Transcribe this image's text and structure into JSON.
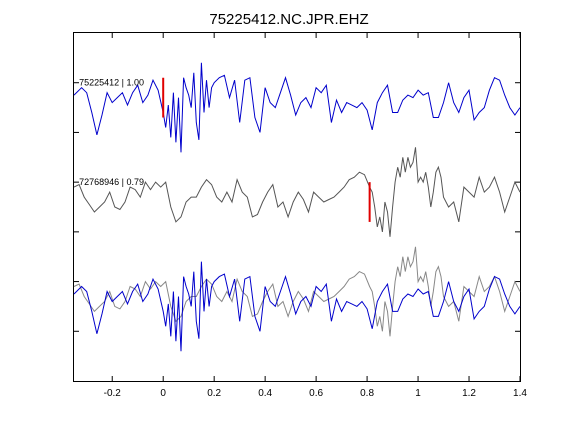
{
  "chart_data": {
    "type": "line",
    "title": "75225412.NC.JPR.EHZ",
    "xlabel": "",
    "ylabel": "",
    "xlim": [
      -0.35,
      1.4
    ],
    "xticks": [
      -0.2,
      0,
      0.2,
      0.4,
      0.6,
      0.8,
      1,
      1.2,
      1.4
    ],
    "xtick_labels": [
      "-0.2",
      "0",
      "0.2",
      "0.4",
      "0.6",
      "0.8",
      "1",
      "1.2",
      "1.4"
    ],
    "ylim": [
      0,
      7
    ],
    "grid": false,
    "colors": {
      "blue": "#0000cc",
      "gray": "#555555",
      "gray_light": "#888888",
      "pick": "#e00000"
    },
    "annotations": [
      {
        "text": "75225412 | 1.00",
        "x": -0.33,
        "y": 6.0
      },
      {
        "text": "72768946 | 0.79",
        "x": -0.33,
        "y": 4.0
      }
    ],
    "picks": [
      {
        "x": 0.0,
        "y_range": [
          5.3,
          6.1
        ]
      },
      {
        "x": 0.81,
        "y_range": [
          3.2,
          4.0
        ]
      }
    ],
    "series": [
      {
        "trace": 1,
        "color_key": "blue",
        "y_offset": 5.5,
        "x": [
          -0.35,
          -0.32,
          -0.3,
          -0.28,
          -0.26,
          -0.24,
          -0.22,
          -0.2,
          -0.18,
          -0.16,
          -0.14,
          -0.12,
          -0.1,
          -0.08,
          -0.06,
          -0.04,
          -0.02,
          0.0,
          0.01,
          0.02,
          0.03,
          0.04,
          0.05,
          0.06,
          0.07,
          0.08,
          0.09,
          0.1,
          0.11,
          0.12,
          0.13,
          0.14,
          0.15,
          0.16,
          0.17,
          0.18,
          0.19,
          0.2,
          0.22,
          0.24,
          0.26,
          0.28,
          0.3,
          0.32,
          0.34,
          0.36,
          0.38,
          0.4,
          0.42,
          0.44,
          0.46,
          0.48,
          0.5,
          0.52,
          0.54,
          0.56,
          0.58,
          0.6,
          0.62,
          0.64,
          0.66,
          0.68,
          0.7,
          0.72,
          0.74,
          0.76,
          0.78,
          0.8,
          0.82,
          0.84,
          0.86,
          0.88,
          0.9,
          0.92,
          0.94,
          0.96,
          0.98,
          1.0,
          1.02,
          1.04,
          1.06,
          1.08,
          1.1,
          1.12,
          1.14,
          1.16,
          1.18,
          1.2,
          1.22,
          1.24,
          1.26,
          1.28,
          1.3,
          1.32,
          1.34,
          1.36,
          1.38,
          1.4
        ],
        "y": [
          0.25,
          0.4,
          0.3,
          -0.1,
          -0.55,
          -0.15,
          0.3,
          0.1,
          0.2,
          0.3,
          0.05,
          0.3,
          0.45,
          0.1,
          0.25,
          0.55,
          0.35,
          -0.1,
          -0.4,
          0.05,
          -0.6,
          0.3,
          -0.7,
          0.2,
          -0.9,
          0.6,
          0.4,
          0.25,
          0.0,
          0.7,
          -0.3,
          -0.65,
          0.9,
          -0.1,
          0.55,
          0.0,
          0.4,
          0.5,
          0.6,
          0.65,
          0.2,
          0.55,
          -0.3,
          0.55,
          0.6,
          -0.2,
          -0.5,
          0.4,
          0.1,
          0.0,
          0.3,
          0.6,
          0.25,
          -0.15,
          0.1,
          0.2,
          0.0,
          0.4,
          0.3,
          0.45,
          -0.3,
          0.15,
          -0.1,
          0.1,
          0.05,
          0.0,
          0.1,
          -0.05,
          -0.45,
          0.1,
          0.3,
          0.45,
          -0.1,
          -0.1,
          0.15,
          0.25,
          0.2,
          0.35,
          0.25,
          0.3,
          -0.2,
          -0.2,
          0.1,
          0.5,
          0.1,
          -0.1,
          0.2,
          0.35,
          -0.25,
          -0.1,
          0.0,
          0.35,
          0.6,
          0.55,
          0.25,
          0.0,
          -0.15,
          0.0
        ]
      },
      {
        "trace": 2,
        "color_key": "gray",
        "y_offset": 3.5,
        "x": [
          -0.35,
          -0.33,
          -0.31,
          -0.29,
          -0.27,
          -0.25,
          -0.23,
          -0.21,
          -0.19,
          -0.17,
          -0.15,
          -0.13,
          -0.11,
          -0.09,
          -0.07,
          -0.05,
          -0.03,
          -0.01,
          0.01,
          0.03,
          0.05,
          0.07,
          0.09,
          0.11,
          0.13,
          0.15,
          0.17,
          0.19,
          0.21,
          0.23,
          0.25,
          0.27,
          0.29,
          0.31,
          0.33,
          0.35,
          0.37,
          0.39,
          0.41,
          0.43,
          0.45,
          0.47,
          0.49,
          0.51,
          0.53,
          0.55,
          0.57,
          0.59,
          0.61,
          0.63,
          0.65,
          0.67,
          0.69,
          0.71,
          0.73,
          0.75,
          0.77,
          0.79,
          0.81,
          0.82,
          0.83,
          0.84,
          0.85,
          0.86,
          0.87,
          0.88,
          0.89,
          0.9,
          0.91,
          0.92,
          0.93,
          0.94,
          0.95,
          0.96,
          0.97,
          0.98,
          0.99,
          1.0,
          1.01,
          1.02,
          1.03,
          1.04,
          1.05,
          1.06,
          1.07,
          1.08,
          1.09,
          1.1,
          1.12,
          1.14,
          1.16,
          1.18,
          1.2,
          1.22,
          1.24,
          1.26,
          1.28,
          1.3,
          1.32,
          1.34,
          1.36,
          1.38,
          1.4
        ],
        "y": [
          0.4,
          0.45,
          0.2,
          0.05,
          -0.1,
          0.0,
          0.1,
          0.3,
          0.0,
          -0.05,
          0.1,
          0.4,
          0.35,
          0.2,
          0.5,
          0.35,
          0.5,
          0.4,
          0.5,
          0.0,
          -0.3,
          -0.2,
          0.1,
          0.2,
          0.2,
          0.4,
          0.55,
          0.45,
          0.2,
          0.1,
          0.3,
          0.1,
          0.55,
          0.3,
          0.2,
          -0.2,
          -0.15,
          0.1,
          0.3,
          0.45,
          0.0,
          0.1,
          -0.2,
          0.1,
          0.3,
          0.15,
          -0.1,
          0.3,
          0.2,
          0.1,
          0.15,
          0.2,
          0.3,
          0.4,
          0.55,
          0.6,
          0.7,
          0.65,
          0.4,
          0.3,
          0.0,
          -0.4,
          -0.2,
          -0.5,
          0.1,
          -0.1,
          -0.6,
          0.0,
          0.5,
          0.8,
          0.6,
          1.0,
          0.7,
          1.0,
          0.8,
          0.9,
          1.2,
          0.5,
          0.6,
          0.5,
          0.7,
          0.4,
          0.0,
          0.3,
          0.7,
          0.8,
          0.6,
          0.2,
          0.0,
          0.1,
          -0.3,
          0.4,
          0.3,
          0.2,
          0.6,
          0.3,
          0.4,
          0.6,
          0.3,
          -0.1,
          0.2,
          0.5,
          0.3
        ]
      },
      {
        "trace": 3,
        "color_key": "gray_light",
        "y_offset": 1.5,
        "x": [
          -0.35,
          -0.33,
          -0.31,
          -0.29,
          -0.27,
          -0.25,
          -0.23,
          -0.21,
          -0.19,
          -0.17,
          -0.15,
          -0.13,
          -0.11,
          -0.09,
          -0.07,
          -0.05,
          -0.03,
          -0.01,
          0.01,
          0.03,
          0.05,
          0.07,
          0.09,
          0.11,
          0.13,
          0.15,
          0.17,
          0.19,
          0.21,
          0.23,
          0.25,
          0.27,
          0.29,
          0.31,
          0.33,
          0.35,
          0.37,
          0.39,
          0.41,
          0.43,
          0.45,
          0.47,
          0.49,
          0.51,
          0.53,
          0.55,
          0.57,
          0.59,
          0.61,
          0.63,
          0.65,
          0.67,
          0.69,
          0.71,
          0.73,
          0.75,
          0.77,
          0.79,
          0.81,
          0.82,
          0.83,
          0.84,
          0.85,
          0.86,
          0.87,
          0.88,
          0.89,
          0.9,
          0.91,
          0.92,
          0.93,
          0.94,
          0.95,
          0.96,
          0.97,
          0.98,
          0.99,
          1.0,
          1.01,
          1.02,
          1.03,
          1.04,
          1.05,
          1.06,
          1.07,
          1.08,
          1.09,
          1.1,
          1.12,
          1.14,
          1.16,
          1.18,
          1.2,
          1.22,
          1.24,
          1.26,
          1.28,
          1.3,
          1.32,
          1.34,
          1.36,
          1.38,
          1.4
        ],
        "y": [
          0.4,
          0.45,
          0.2,
          0.05,
          -0.1,
          0.0,
          0.1,
          0.3,
          0.0,
          -0.05,
          0.1,
          0.4,
          0.35,
          0.2,
          0.5,
          0.35,
          0.5,
          0.4,
          0.5,
          0.0,
          -0.3,
          -0.2,
          0.1,
          0.2,
          0.2,
          0.4,
          0.55,
          0.45,
          0.2,
          0.1,
          0.3,
          0.1,
          0.55,
          0.3,
          0.2,
          -0.2,
          -0.15,
          0.1,
          0.3,
          0.45,
          0.0,
          0.1,
          -0.2,
          0.1,
          0.3,
          0.15,
          -0.1,
          0.3,
          0.2,
          0.1,
          0.15,
          0.2,
          0.3,
          0.4,
          0.55,
          0.6,
          0.7,
          0.65,
          0.4,
          0.3,
          0.0,
          -0.4,
          -0.2,
          -0.5,
          0.1,
          -0.1,
          -0.6,
          0.0,
          0.5,
          0.8,
          0.6,
          1.0,
          0.7,
          1.0,
          0.8,
          0.9,
          1.2,
          0.5,
          0.6,
          0.5,
          0.7,
          0.4,
          0.0,
          0.3,
          0.7,
          0.8,
          0.6,
          0.2,
          0.0,
          0.1,
          -0.3,
          0.4,
          0.3,
          0.2,
          0.6,
          0.3,
          0.4,
          0.6,
          0.3,
          -0.1,
          0.2,
          0.5,
          0.3
        ]
      },
      {
        "trace": 3,
        "color_key": "blue",
        "y_offset": 1.5,
        "x": [
          -0.35,
          -0.32,
          -0.3,
          -0.28,
          -0.26,
          -0.24,
          -0.22,
          -0.2,
          -0.18,
          -0.16,
          -0.14,
          -0.12,
          -0.1,
          -0.08,
          -0.06,
          -0.04,
          -0.02,
          0.0,
          0.01,
          0.02,
          0.03,
          0.04,
          0.05,
          0.06,
          0.07,
          0.08,
          0.09,
          0.1,
          0.11,
          0.12,
          0.13,
          0.14,
          0.15,
          0.16,
          0.17,
          0.18,
          0.19,
          0.2,
          0.22,
          0.24,
          0.26,
          0.28,
          0.3,
          0.32,
          0.34,
          0.36,
          0.38,
          0.4,
          0.42,
          0.44,
          0.46,
          0.48,
          0.5,
          0.52,
          0.54,
          0.56,
          0.58,
          0.6,
          0.62,
          0.64,
          0.66,
          0.68,
          0.7,
          0.72,
          0.74,
          0.76,
          0.78,
          0.8,
          0.82,
          0.84,
          0.86,
          0.88,
          0.9,
          0.92,
          0.94,
          0.96,
          0.98,
          1.0,
          1.02,
          1.04,
          1.06,
          1.08,
          1.1,
          1.12,
          1.14,
          1.16,
          1.18,
          1.2,
          1.22,
          1.24,
          1.26,
          1.28,
          1.3,
          1.32,
          1.34,
          1.36,
          1.38,
          1.4
        ],
        "y": [
          0.25,
          0.4,
          0.3,
          -0.1,
          -0.55,
          -0.15,
          0.3,
          0.1,
          0.2,
          0.3,
          0.05,
          0.3,
          0.45,
          0.1,
          0.25,
          0.55,
          0.35,
          -0.1,
          -0.4,
          0.05,
          -0.6,
          0.3,
          -0.7,
          0.2,
          -0.9,
          0.6,
          0.4,
          0.25,
          0.0,
          0.7,
          -0.3,
          -0.65,
          0.9,
          -0.1,
          0.55,
          0.0,
          0.4,
          0.5,
          0.6,
          0.65,
          0.2,
          0.55,
          -0.3,
          0.55,
          0.6,
          -0.2,
          -0.5,
          0.4,
          0.1,
          0.0,
          0.3,
          0.6,
          0.25,
          -0.15,
          0.1,
          0.2,
          0.0,
          0.4,
          0.3,
          0.45,
          -0.3,
          0.15,
          -0.1,
          0.1,
          0.05,
          0.0,
          0.1,
          -0.05,
          -0.45,
          0.1,
          0.3,
          0.45,
          -0.1,
          -0.1,
          0.15,
          0.25,
          0.2,
          0.35,
          0.25,
          0.3,
          -0.2,
          -0.2,
          0.1,
          0.5,
          0.1,
          -0.1,
          0.2,
          0.35,
          -0.25,
          -0.1,
          0.0,
          0.35,
          0.6,
          0.55,
          0.25,
          0.0,
          -0.15,
          0.0
        ]
      }
    ]
  }
}
